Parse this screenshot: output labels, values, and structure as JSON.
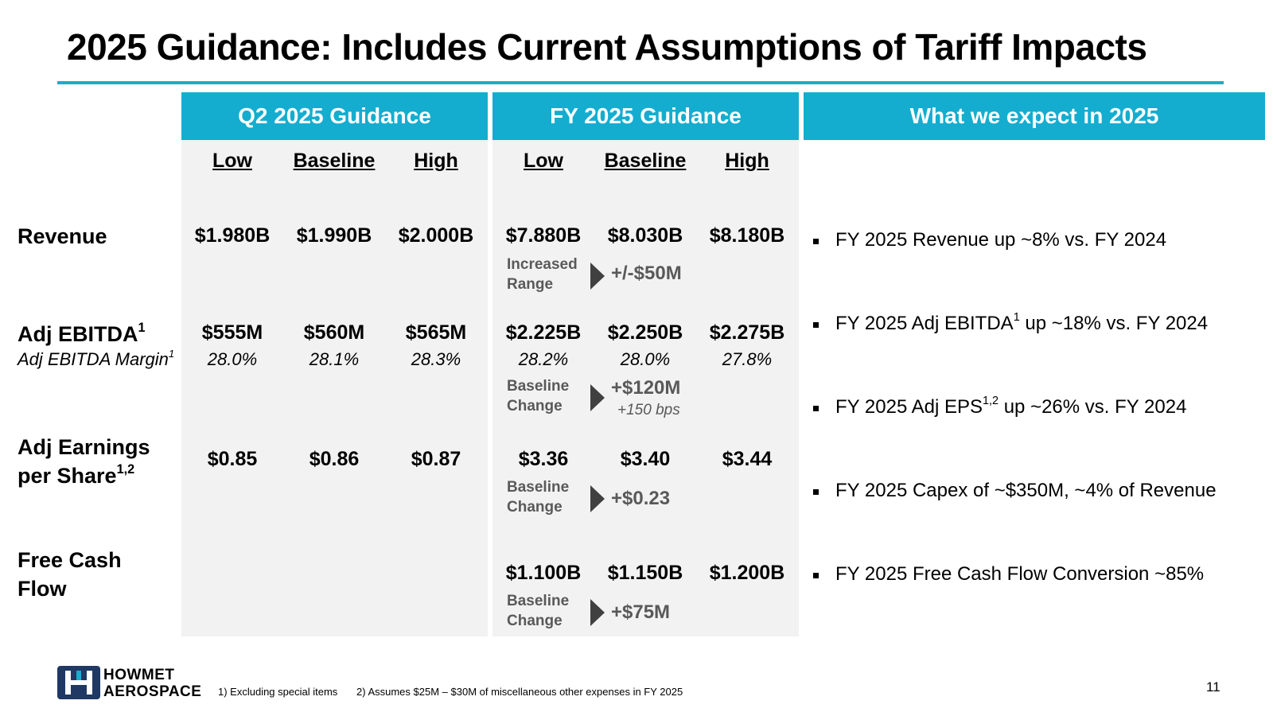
{
  "title": "2025 Guidance: Includes Current Assumptions of Tariff Impacts",
  "headers": {
    "q2": "Q2 2025 Guidance",
    "fy": "FY 2025 Guidance",
    "expect": "What we expect in 2025"
  },
  "columns": {
    "low": "Low",
    "baseline": "Baseline",
    "high": "High"
  },
  "rows": {
    "revenue": {
      "label": "Revenue",
      "q2": [
        "$1.980B",
        "$1.990B",
        "$2.000B"
      ],
      "fy": [
        "$7.880B",
        "$8.030B",
        "$8.180B"
      ],
      "change_label_1": "Increased",
      "change_label_2": "Range",
      "change_value": "+/-$50M"
    },
    "ebitda": {
      "label": "Adj EBITDA",
      "label_sup": "1",
      "sublabel": "Adj EBITDA Margin",
      "sublabel_sup": "1",
      "q2": [
        "$555M",
        "$560M",
        "$565M"
      ],
      "q2_margin": [
        "28.0%",
        "28.1%",
        "28.3%"
      ],
      "fy": [
        "$2.225B",
        "$2.250B",
        "$2.275B"
      ],
      "fy_margin": [
        "28.2%",
        "28.0%",
        "27.8%"
      ],
      "change_label_1": "Baseline",
      "change_label_2": "Change",
      "change_value": "+$120M",
      "change_note": "+150 bps"
    },
    "eps": {
      "label_1": "Adj Earnings",
      "label_2": "per Share",
      "label_sup": "1,2",
      "q2": [
        "$0.85",
        "$0.86",
        "$0.87"
      ],
      "fy": [
        "$3.36",
        "$3.40",
        "$3.44"
      ],
      "change_label_1": "Baseline",
      "change_label_2": "Change",
      "change_value": "+$0.23"
    },
    "fcf": {
      "label_1": "Free Cash",
      "label_2": "Flow",
      "fy": [
        "$1.100B",
        "$1.150B",
        "$1.200B"
      ],
      "change_label_1": "Baseline",
      "change_label_2": "Change",
      "change_value": "+$75M"
    }
  },
  "bullets": {
    "b1": "FY 2025 Revenue up ~8% vs. FY 2024",
    "b2_pre": "FY 2025 Adj EBITDA",
    "b2_sup": "1",
    "b2_post": " up ~18% vs. FY 2024",
    "b3_pre": "FY 2025 Adj EPS",
    "b3_sup": "1,2",
    "b3_post": " up ~26% vs. FY 2024",
    "b4": "FY 2025 Capex of ~$350M, ~4% of Revenue",
    "b5": "FY 2025 Free Cash Flow Conversion ~85%"
  },
  "footer": {
    "brand_1": "HOWMET",
    "brand_2": "AEROSPACE",
    "footnote_1": "1) Excluding special items",
    "footnote_2": "2) Assumes $25M – $30M of miscellaneous other expenses in FY 2025",
    "page_number": "11"
  },
  "colors": {
    "accent": "#14add0",
    "panel": "#f2f2f2",
    "muted": "#595959",
    "logo": "#1f3864"
  }
}
